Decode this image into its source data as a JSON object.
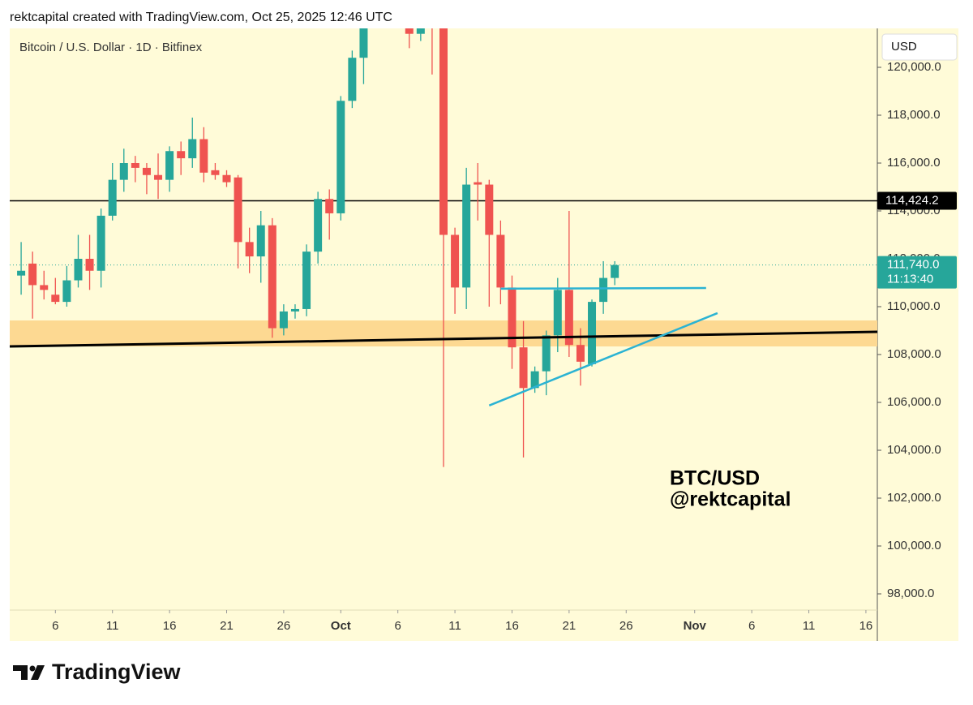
{
  "header": "rektcapital created with TradingView.com, Oct 25, 2025 12:46 UTC",
  "footer_logo": "TradingView",
  "chart_data": {
    "type": "candlestick",
    "title": "Bitcoin / U.S. Dollar · 1D · Bitfinex",
    "currency_button": "USD",
    "watermark": [
      "BTC/USD",
      "@rektcapital"
    ],
    "x": [
      "2025-09-03",
      "2025-09-04",
      "2025-09-05",
      "2025-09-06",
      "2025-09-07",
      "2025-09-08",
      "2025-09-09",
      "2025-09-10",
      "2025-09-11",
      "2025-09-12",
      "2025-09-13",
      "2025-09-14",
      "2025-09-15",
      "2025-09-16",
      "2025-09-17",
      "2025-09-18",
      "2025-09-19",
      "2025-09-20",
      "2025-09-21",
      "2025-09-22",
      "2025-09-23",
      "2025-09-24",
      "2025-09-25",
      "2025-09-26",
      "2025-09-27",
      "2025-09-28",
      "2025-09-29",
      "2025-09-30",
      "2025-10-01",
      "2025-10-02",
      "2025-10-03",
      "2025-10-04",
      "2025-10-05",
      "2025-10-06",
      "2025-10-07",
      "2025-10-08",
      "2025-10-09",
      "2025-10-10",
      "2025-10-11",
      "2025-10-12",
      "2025-10-13",
      "2025-10-14",
      "2025-10-15",
      "2025-10-16",
      "2025-10-17",
      "2025-10-18",
      "2025-10-19",
      "2025-10-20",
      "2025-10-21",
      "2025-10-22",
      "2025-10-23",
      "2025-10-24",
      "2025-10-25"
    ],
    "open": [
      111300,
      111800,
      110900,
      110500,
      110200,
      111100,
      112000,
      111500,
      113800,
      115300,
      116000,
      115800,
      115500,
      115300,
      116500,
      116200,
      117000,
      115700,
      115500,
      115400,
      112700,
      112100,
      113400,
      109100,
      109800,
      109900,
      112300,
      114500,
      113900,
      118600,
      120400,
      122500,
      122300,
      123500,
      124700,
      121400,
      123300,
      121700,
      113000,
      110800,
      115200,
      115100,
      113000,
      110800,
      108300,
      106600,
      107300,
      108800,
      110700,
      108400,
      107600,
      110200,
      111200
    ],
    "high": [
      112700,
      112300,
      111500,
      111200,
      111700,
      113000,
      113000,
      114100,
      116000,
      116600,
      116300,
      116000,
      116400,
      116700,
      116900,
      117900,
      117500,
      116000,
      115700,
      115500,
      113300,
      114000,
      113700,
      110100,
      110100,
      112600,
      114800,
      114900,
      118800,
      120700,
      123000,
      122900,
      125700,
      126200,
      125200,
      124200,
      123800,
      122500,
      113300,
      115800,
      116000,
      115300,
      113600,
      111300,
      109400,
      107500,
      109000,
      111200,
      114000,
      109100,
      110300,
      111900,
      111900
    ],
    "low": [
      110500,
      109500,
      110300,
      110100,
      110000,
      110800,
      110700,
      110800,
      113600,
      114800,
      115200,
      114700,
      114500,
      114800,
      115500,
      115800,
      115200,
      115300,
      115000,
      111600,
      111400,
      111000,
      108700,
      108800,
      109500,
      109600,
      111800,
      112800,
      113600,
      118300,
      119300,
      121800,
      122000,
      123000,
      120800,
      121100,
      119700,
      103300,
      109700,
      109900,
      113600,
      110000,
      110100,
      107400,
      103700,
      106400,
      106300,
      108100,
      107900,
      106700,
      107500,
      109700,
      110900
    ],
    "close": [
      111500,
      110900,
      110700,
      110200,
      111100,
      112000,
      111500,
      113800,
      115300,
      116000,
      115800,
      115500,
      115300,
      116500,
      116200,
      117000,
      115600,
      115500,
      115200,
      112700,
      112100,
      113400,
      109100,
      109800,
      109900,
      112300,
      114500,
      113900,
      118600,
      120400,
      122500,
      122300,
      123500,
      124700,
      121400,
      123300,
      121700,
      113000,
      110800,
      115100,
      115100,
      113000,
      110800,
      108300,
      106600,
      107300,
      108800,
      110700,
      108400,
      107700,
      110200,
      111200,
      111740
    ],
    "up_color": "#26a69a",
    "down_color": "#ef5350",
    "xlim": [
      "2025-09-02",
      "2025-11-17"
    ],
    "xticks": [
      {
        "value": "2025-09-06",
        "label": "6"
      },
      {
        "value": "2025-09-11",
        "label": "11"
      },
      {
        "value": "2025-09-16",
        "label": "16"
      },
      {
        "value": "2025-09-21",
        "label": "21"
      },
      {
        "value": "2025-09-26",
        "label": "26"
      },
      {
        "value": "2025-10-01",
        "label": "Oct"
      },
      {
        "value": "2025-10-06",
        "label": "6"
      },
      {
        "value": "2025-10-11",
        "label": "11"
      },
      {
        "value": "2025-10-16",
        "label": "16"
      },
      {
        "value": "2025-10-21",
        "label": "21"
      },
      {
        "value": "2025-10-26",
        "label": "26"
      },
      {
        "value": "2025-11-01",
        "label": "Nov"
      },
      {
        "value": "2025-11-06",
        "label": "6"
      },
      {
        "value": "2025-11-11",
        "label": "11"
      },
      {
        "value": "2025-11-16",
        "label": "16"
      }
    ],
    "ylim": [
      97322,
      121627
    ],
    "yticks": [
      {
        "value": 98000,
        "label": "98,000.0"
      },
      {
        "value": 100000,
        "label": "100,000.0"
      },
      {
        "value": 102000,
        "label": "102,000.0"
      },
      {
        "value": 104000,
        "label": "104,000.0"
      },
      {
        "value": 106000,
        "label": "106,000.0"
      },
      {
        "value": 108000,
        "label": "108,000.0"
      },
      {
        "value": 110000,
        "label": "110,000.0"
      },
      {
        "value": 112000,
        "label": "112,000.0"
      },
      {
        "value": 114000,
        "label": "114,000.0"
      },
      {
        "value": 116000,
        "label": "116,000.0"
      },
      {
        "value": 118000,
        "label": "118,000.0"
      },
      {
        "value": 120000,
        "label": "120,000.0"
      }
    ],
    "price_line": {
      "value": 114424.2,
      "label": "114,424.2",
      "color": "#000000"
    },
    "last_price": {
      "value": 111740,
      "label": "111,740.0",
      "countdown": "11:13:40",
      "color": "#26a69a"
    },
    "zone": {
      "low": 108338,
      "high": 109424,
      "color": "#fdd992"
    },
    "trendlines": [
      {
        "x": [
          "2025-09-02",
          "2025-11-17"
        ],
        "y": [
          108338,
          108948
        ],
        "color": "#000000"
      },
      {
        "x": [
          "2025-10-15",
          "2025-11-02"
        ],
        "y": [
          110750,
          110780
        ],
        "color": "#2bb3d3"
      },
      {
        "x": [
          "2025-10-14",
          "2025-11-03"
        ],
        "y": [
          105870,
          109730
        ],
        "color": "#2bb3d3"
      }
    ]
  }
}
